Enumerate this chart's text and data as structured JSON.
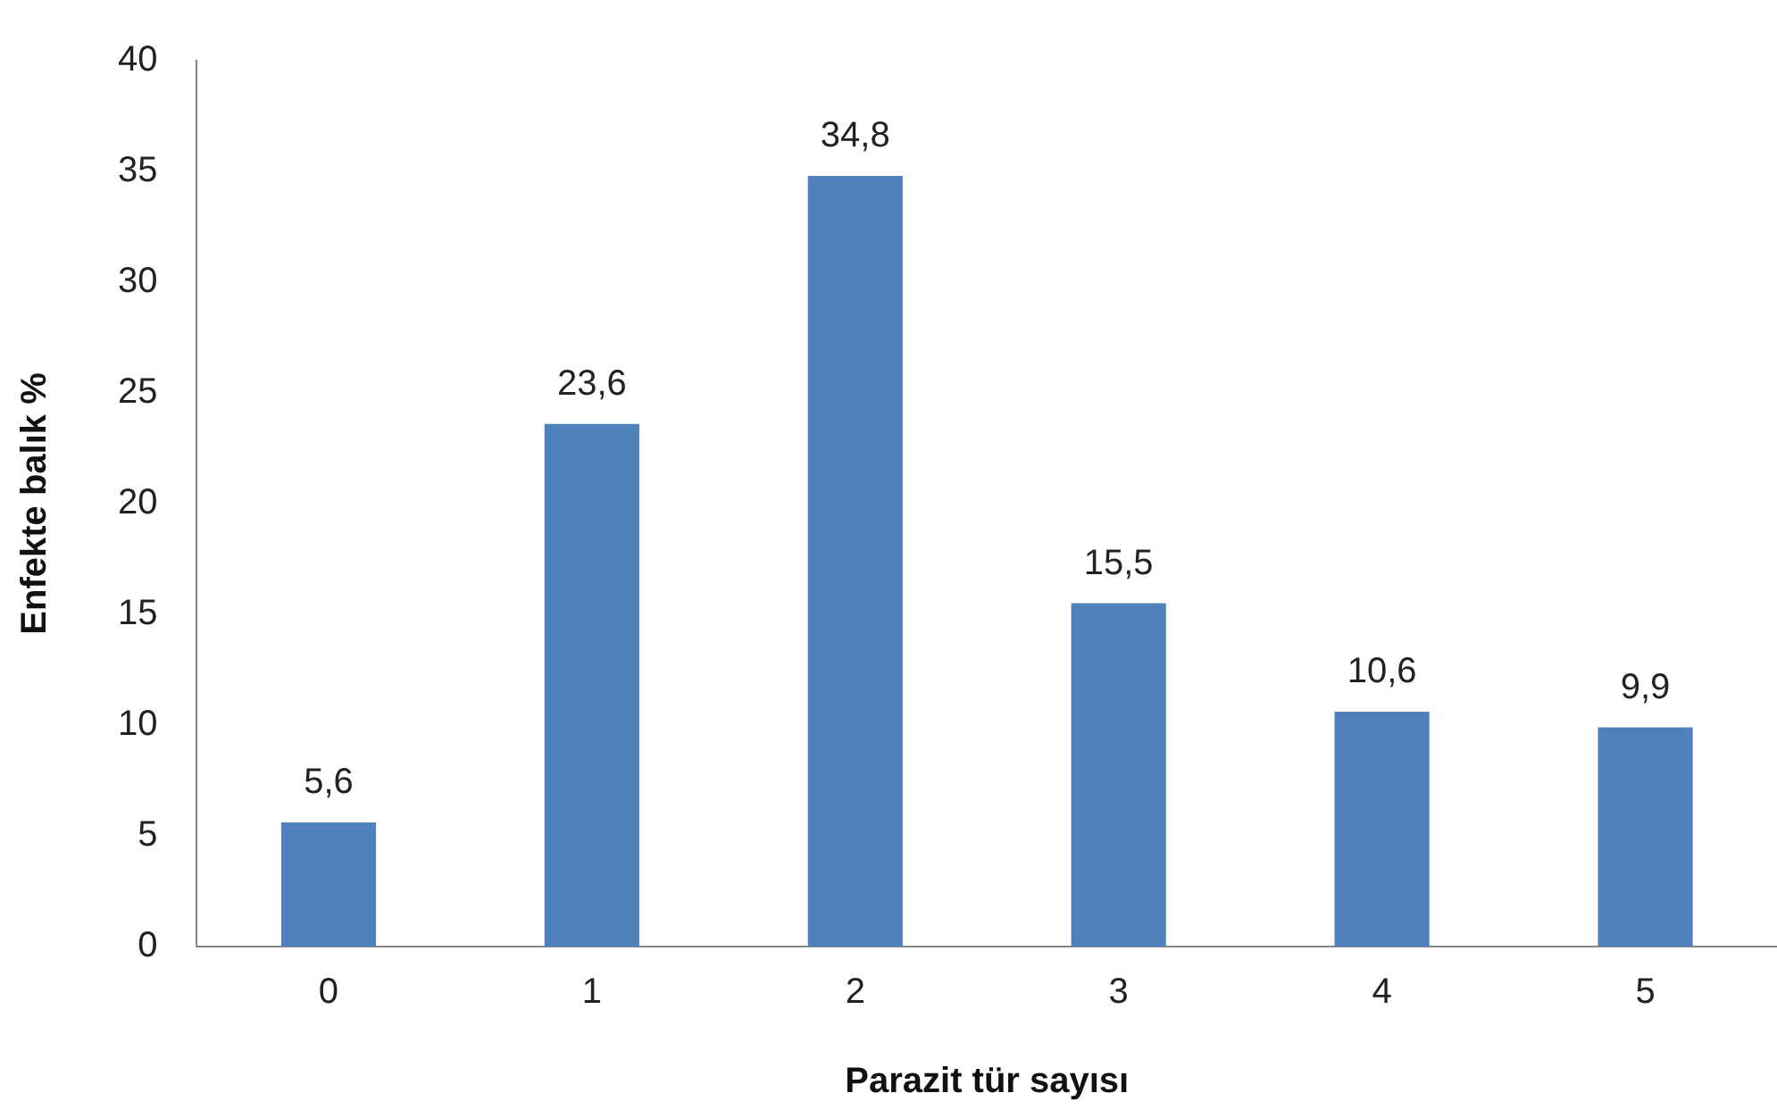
{
  "chart_data": {
    "type": "bar",
    "xlabel": "Parazit tür sayısı",
    "ylabel": "Enfekte balık %",
    "categories": [
      "0",
      "1",
      "2",
      "3",
      "4",
      "5"
    ],
    "values": [
      5.6,
      23.6,
      34.8,
      15.5,
      10.6,
      9.9
    ],
    "value_labels": [
      "5,6",
      "23,6",
      "34,8",
      "15,5",
      "10,6",
      "9,9"
    ],
    "color": "#4f81bd",
    "ylim": [
      0,
      40
    ],
    "yticks": [
      0,
      5,
      10,
      15,
      20,
      25,
      30,
      35,
      40
    ],
    "grid": false,
    "legend": false
  }
}
